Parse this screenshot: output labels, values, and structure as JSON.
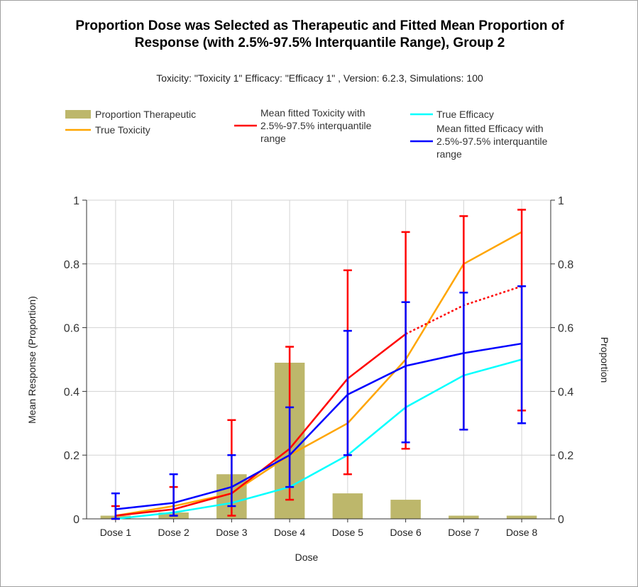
{
  "title_line1": "Proportion Dose was Selected as Therapeutic and Fitted Mean Proportion of",
  "title_line2": "Response (with 2.5%-97.5% Interquantile Range), Group 2",
  "subtitle": "Toxicity: \"Toxicity 1\" Efficacy: \"Efficacy 1\" , Version: 6.2.3, Simulations: 100",
  "colors": {
    "bar": "#bdb76b",
    "true_toxicity": "#ffa500",
    "fitted_toxicity": "#ff0000",
    "true_efficacy": "#00ffff",
    "fitted_efficacy": "#0000ff",
    "grid": "#d3d3d3"
  },
  "legend": {
    "proportion_therapeutic": "Proportion Therapeutic",
    "true_toxicity": "True Toxicity",
    "fitted_toxicity": [
      "Mean fitted Toxicity with",
      "2.5%-97.5% interquantile",
      "range"
    ],
    "true_efficacy": "True Efficacy",
    "fitted_efficacy": [
      "Mean fitted Efficacy with",
      "2.5%-97.5% interquantile",
      "range"
    ]
  },
  "chart_data": {
    "type": "bar",
    "categories": [
      "Dose 1",
      "Dose 2",
      "Dose 3",
      "Dose 4",
      "Dose 5",
      "Dose 6",
      "Dose 7",
      "Dose 8"
    ],
    "xlabel": "Dose",
    "ylabel": "Mean Response (Proportion)",
    "y2label": "Proportion",
    "ylim": [
      0,
      1
    ],
    "y2lim": [
      0,
      1
    ],
    "yticks": [
      "0",
      "0.2",
      "0.4",
      "0.6",
      "0.8",
      "1"
    ],
    "ytick_values": [
      0,
      0.2,
      0.4,
      0.6,
      0.8,
      1
    ],
    "grid": true,
    "legend_position": "top",
    "series": [
      {
        "name": "Proportion Therapeutic",
        "kind": "bar",
        "axis": "right",
        "values": [
          0.01,
          0.02,
          0.14,
          0.49,
          0.08,
          0.06,
          0.01,
          0.01
        ]
      },
      {
        "name": "True Toxicity",
        "kind": "line",
        "values": [
          0.01,
          0.04,
          0.08,
          0.2,
          0.3,
          0.5,
          0.8,
          0.9
        ]
      },
      {
        "name": "Mean fitted Toxicity with 2.5%-97.5% interquantile range",
        "kind": "line",
        "values": [
          0.01,
          0.03,
          0.08,
          0.22,
          0.44,
          0.58,
          0.67,
          0.73
        ],
        "dotted_from_index": 5,
        "lower": [
          0.0,
          0.01,
          0.01,
          0.06,
          0.14,
          0.22,
          0.28,
          0.34
        ],
        "upper": [
          0.04,
          0.1,
          0.31,
          0.54,
          0.78,
          0.9,
          0.95,
          0.97
        ]
      },
      {
        "name": "True Efficacy",
        "kind": "line",
        "values": [
          0.0,
          0.02,
          0.05,
          0.1,
          0.2,
          0.35,
          0.45,
          0.5
        ]
      },
      {
        "name": "Mean fitted Efficacy with 2.5%-97.5% interquantile range",
        "kind": "line",
        "values": [
          0.03,
          0.05,
          0.1,
          0.2,
          0.39,
          0.48,
          0.52,
          0.55
        ],
        "lower": [
          0.0,
          0.01,
          0.04,
          0.1,
          0.2,
          0.24,
          0.28,
          0.3
        ],
        "upper": [
          0.08,
          0.14,
          0.2,
          0.35,
          0.59,
          0.68,
          0.71,
          0.73
        ]
      }
    ]
  }
}
